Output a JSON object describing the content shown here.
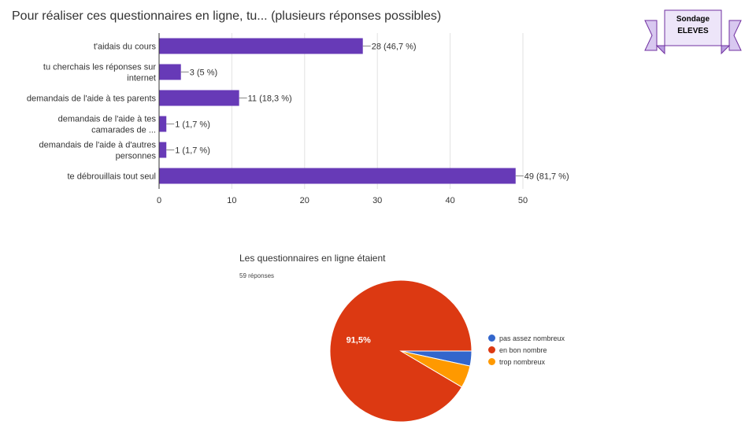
{
  "banner": {
    "line1": "Sondage",
    "line2": "ELEVES"
  },
  "chart_data": [
    {
      "type": "bar",
      "orientation": "horizontal",
      "title": "Pour réaliser ces questionnaires en ligne, tu... (plusieurs réponses possibles)",
      "xlabel": "",
      "ylabel": "",
      "xlim": [
        0,
        50
      ],
      "ticks": [
        0,
        10,
        20,
        30,
        40,
        50
      ],
      "categories": [
        [
          "t'aidais du cours"
        ],
        [
          "tu cherchais les réponses sur",
          "internet"
        ],
        [
          "demandais de l'aide à tes parents"
        ],
        [
          "demandais de l'aide à tes",
          "camarades de ..."
        ],
        [
          "demandais de l'aide à d'autres",
          "personnes"
        ],
        [
          "te débrouillais tout seul"
        ]
      ],
      "values": [
        28,
        3,
        11,
        1,
        1,
        49
      ],
      "data_labels": [
        "28 (46,7 %)",
        "3 (5 %)",
        "11 (18,3 %)",
        "1 (1,7 %)",
        "1 (1,7 %)",
        "49 (81,7 %)"
      ],
      "grid": true,
      "color": "#673ab7"
    },
    {
      "type": "pie",
      "title": "Les questionnaires en ligne étaient",
      "subtitle": "59 réponses",
      "categories": [
        "pas assez nombreux",
        "en bon nombre",
        "trop nombreux"
      ],
      "values": [
        3.4,
        91.5,
        5.1
      ],
      "slice_labels": [
        "",
        "91,5%",
        ""
      ],
      "colors": [
        "#3366cc",
        "#dc3912",
        "#ff9900"
      ],
      "legend": "right"
    }
  ]
}
